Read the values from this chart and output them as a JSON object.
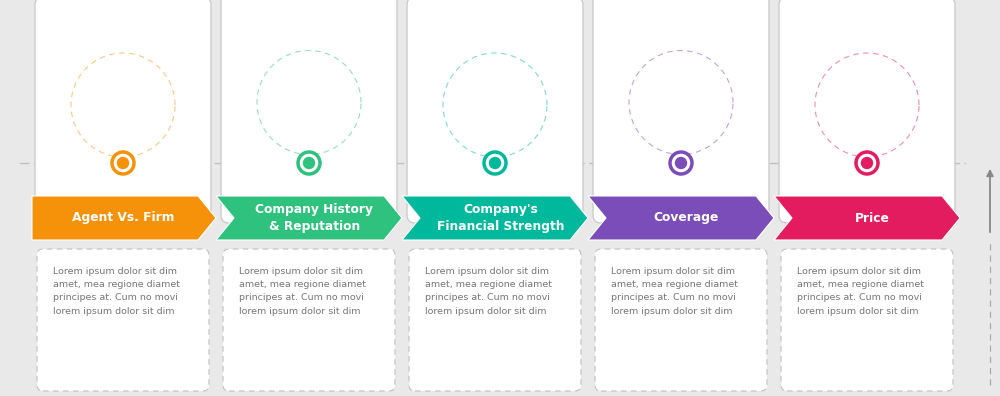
{
  "background_color": "#e9e9e9",
  "steps": [
    {
      "title_lines": [
        "Agent Vs. Firm"
      ],
      "color": "#f5920a",
      "raised": false
    },
    {
      "title_lines": [
        "Company History",
        "& Reputation"
      ],
      "color": "#2ec27e",
      "raised": true
    },
    {
      "title_lines": [
        "Company's",
        "Financial Strength"
      ],
      "color": "#00b89c",
      "raised": false
    },
    {
      "title_lines": [
        "Coverage"
      ],
      "color": "#7b4db8",
      "raised": true
    },
    {
      "title_lines": [
        "Price"
      ],
      "color": "#e31c5f",
      "raised": false
    }
  ],
  "body_text": "Lorem ipsum dolor sit dim\namet, mea regione diamet\nprincipes at. Cum no movi\nlorem ipsum dolor sit dim",
  "title_fontsize": 8.8,
  "body_fontsize": 6.8
}
